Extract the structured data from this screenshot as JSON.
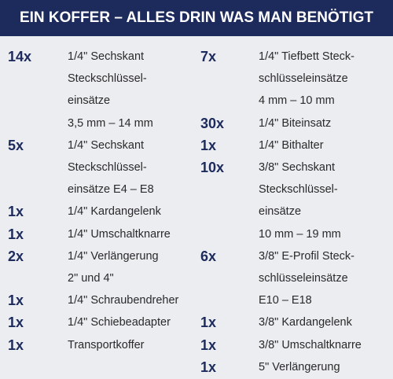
{
  "header": {
    "title": "EIN KOFFER – ALLES DRIN WAS MAN BENÖTIGT"
  },
  "columns": [
    {
      "items": [
        {
          "qty": "14x",
          "lines": [
            "1/4\" Sechskant",
            "Steckschlüssel-",
            "einsätze",
            "3,5 mm – 14 mm"
          ]
        },
        {
          "qty": "5x",
          "lines": [
            "1/4\" Sechskant",
            "Steckschlüssel-",
            "einsätze E4 – E8"
          ]
        },
        {
          "qty": "1x",
          "lines": [
            "1/4\" Kardangelenk"
          ]
        },
        {
          "qty": "1x",
          "lines": [
            "1/4\" Umschaltknarre"
          ]
        },
        {
          "qty": "2x",
          "lines": [
            "1/4\" Verlängerung",
            "2\" und 4\""
          ]
        },
        {
          "qty": "1x",
          "lines": [
            "1/4\" Schraubendreher"
          ]
        },
        {
          "qty": "1x",
          "lines": [
            "1/4\" Schiebeadapter"
          ]
        },
        {
          "qty": "1x",
          "lines": [
            "Transportkoffer"
          ]
        }
      ]
    },
    {
      "items": [
        {
          "qty": "7x",
          "lines": [
            "1/4\" Tiefbett Steck-",
            "schlüsseleinsätze",
            "4 mm – 10 mm"
          ]
        },
        {
          "qty": "30x",
          "lines": [
            "1/4\" Biteinsatz"
          ]
        },
        {
          "qty": "1x",
          "lines": [
            "1/4\" Bithalter"
          ]
        },
        {
          "qty": "10x",
          "lines": [
            "3/8\" Sechskant",
            "Steckschlüssel-",
            "einsätze",
            "10 mm – 19 mm"
          ]
        },
        {
          "qty": "6x",
          "lines": [
            "3/8\" E-Profil Steck-",
            "schlüsseleinsätze",
            "E10 – E18"
          ]
        },
        {
          "qty": "1x",
          "lines": [
            "3/8\" Kardangelenk"
          ]
        },
        {
          "qty": "1x",
          "lines": [
            "3/8\" Umschaltknarre"
          ]
        },
        {
          "qty": "1x",
          "lines": [
            "5\" Verlängerung"
          ]
        }
      ]
    }
  ]
}
